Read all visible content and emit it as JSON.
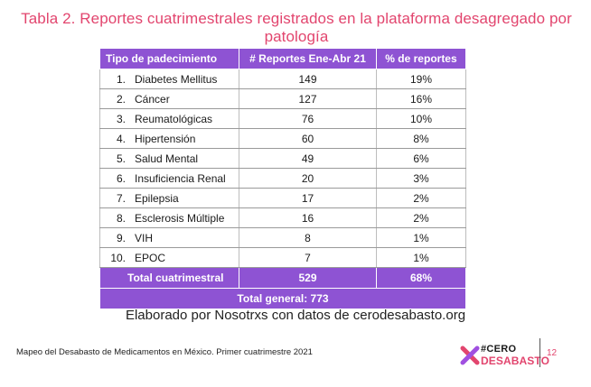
{
  "title": "Tabla 2. Reportes cuatrimestrales registrados en la plataforma desagregado por patología",
  "table": {
    "headers": [
      "Tipo de padecimiento",
      "# Reportes Ene-Abr 21",
      "% de reportes"
    ],
    "rows": [
      {
        "num": "1.",
        "name": "Diabetes Mellitus",
        "reports": "149",
        "percent": "19%"
      },
      {
        "num": "2.",
        "name": "Cáncer",
        "reports": "127",
        "percent": "16%"
      },
      {
        "num": "3.",
        "name": "Reumatológicas",
        "reports": "76",
        "percent": "10%"
      },
      {
        "num": "4.",
        "name": "Hipertensión",
        "reports": "60",
        "percent": "8%"
      },
      {
        "num": "5.",
        "name": "Salud Mental",
        "reports": "49",
        "percent": "6%"
      },
      {
        "num": "6.",
        "name": "Insuficiencia Renal",
        "reports": "20",
        "percent": "3%"
      },
      {
        "num": "7.",
        "name": "Epilepsia",
        "reports": "17",
        "percent": "2%"
      },
      {
        "num": "8.",
        "name": "Esclerosis Múltiple",
        "reports": "16",
        "percent": "2%"
      },
      {
        "num": "9.",
        "name": "VIH",
        "reports": "8",
        "percent": "1%"
      },
      {
        "num": "10.",
        "name": "EPOC",
        "reports": "7",
        "percent": "1%"
      }
    ],
    "total": {
      "label": "Total cuatrimestral",
      "reports": "529",
      "percent": "68%"
    },
    "grand_total": "Total general: 773"
  },
  "caption": "Elaborado por Nosotrxs con datos de cerodesabasto.org",
  "footer": {
    "text": "Mapeo del Desabasto de Medicamentos en México. Primer cuatrimestre 2021",
    "logo_line1": "#CERO",
    "logo_line2": "DESABASTO",
    "page_number": "12"
  },
  "colors": {
    "accent_pink": "#e2456e",
    "header_purple": "#8e53d3"
  }
}
